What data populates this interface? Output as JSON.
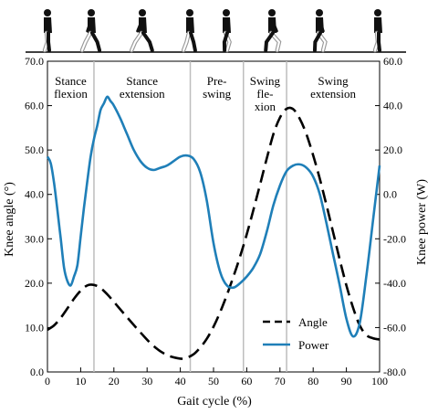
{
  "chart_data": {
    "type": "line",
    "xlabel": "Gait cycle (%)",
    "ylabel_left": "Knee angle (°)",
    "ylabel_right": "Knee  power (W)",
    "xlim": [
      0,
      100
    ],
    "ylim_left": [
      0,
      70
    ],
    "ylim_right": [
      -80,
      60
    ],
    "x_ticks": [
      0,
      10,
      20,
      30,
      40,
      50,
      60,
      70,
      80,
      90,
      100
    ],
    "y_left_ticks": [
      "0.0",
      "10.0",
      "20.0",
      "30.0",
      "40.0",
      "50.0",
      "60.0",
      "70.0"
    ],
    "y_right_ticks": [
      "-80.0",
      "-60.0",
      "-40.0",
      "-20.0",
      "0.0",
      "20.0",
      "40.0",
      "60.0"
    ],
    "phase_boundaries": [
      14,
      43,
      59,
      72
    ],
    "phases": [
      {
        "lines": [
          "Stance",
          "flexion"
        ],
        "x": 7
      },
      {
        "lines": [
          "Stance",
          "extension"
        ],
        "x": 28.5
      },
      {
        "lines": [
          "Pre-",
          "swing"
        ],
        "x": 51
      },
      {
        "lines": [
          "Swing",
          "fle-",
          "xion"
        ],
        "x": 65.5
      },
      {
        "lines": [
          "Swing",
          "extension"
        ],
        "x": 86
      }
    ],
    "series": [
      {
        "name": "Angle",
        "axis": "left",
        "style": "dashed",
        "color": "#000000",
        "x": [
          0,
          2,
          4,
          6,
          8,
          10,
          12,
          14,
          16,
          18,
          20,
          24,
          28,
          32,
          36,
          40,
          42,
          44,
          46,
          48,
          50,
          52,
          54,
          56,
          58,
          60,
          62,
          64,
          66,
          68,
          70,
          72,
          74,
          76,
          78,
          80,
          82,
          84,
          86,
          88,
          90,
          92,
          94,
          96,
          98,
          100
        ],
        "values": [
          9.5,
          10.5,
          12.2,
          14.3,
          16.5,
          18.3,
          19.5,
          19.6,
          18.9,
          17.5,
          15.8,
          12.3,
          8.9,
          5.8,
          3.8,
          3.0,
          3.2,
          4.0,
          5.5,
          7.5,
          10.2,
          13.5,
          17.3,
          21.5,
          26.0,
          31.0,
          36.5,
          42.2,
          48.0,
          53.5,
          57.3,
          59.3,
          59.2,
          57.0,
          53.5,
          48.8,
          43.5,
          37.6,
          31.5,
          25.3,
          19.5,
          14.5,
          10.5,
          8.3,
          7.6,
          7.3
        ]
      },
      {
        "name": "Power",
        "axis": "right",
        "style": "solid",
        "color": "#1f7fb8",
        "x": [
          0,
          1,
          2,
          3,
          4,
          5,
          6,
          7,
          8,
          9,
          10,
          11,
          12,
          13,
          14,
          15,
          16,
          17,
          18,
          19,
          20,
          22,
          24,
          26,
          28,
          30,
          32,
          34,
          36,
          38,
          40,
          42,
          44,
          46,
          48,
          50,
          52,
          54,
          56,
          58,
          60,
          62,
          64,
          66,
          68,
          70,
          72,
          74,
          76,
          78,
          80,
          82,
          84,
          86,
          88,
          90,
          92,
          94,
          96,
          98,
          100
        ],
        "values": [
          17,
          14,
          5,
          -7,
          -20,
          -33,
          -39,
          -41,
          -37,
          -32,
          -19,
          -6,
          6,
          17,
          25,
          31,
          38,
          41,
          44,
          42,
          40,
          34,
          27,
          20,
          15,
          12,
          11,
          12,
          13,
          15,
          17,
          17.5,
          16,
          10,
          -3,
          -22,
          -35,
          -41,
          -42,
          -40,
          -37,
          -33,
          -27,
          -17,
          -5,
          4,
          10.5,
          13,
          13.5,
          12,
          8,
          0,
          -13,
          -27,
          -41,
          -56,
          -64,
          -58,
          -37,
          -12,
          13
        ]
      }
    ],
    "legend": {
      "position": "bottom-right",
      "entries": [
        "Angle",
        "Power"
      ]
    },
    "grid": false
  }
}
